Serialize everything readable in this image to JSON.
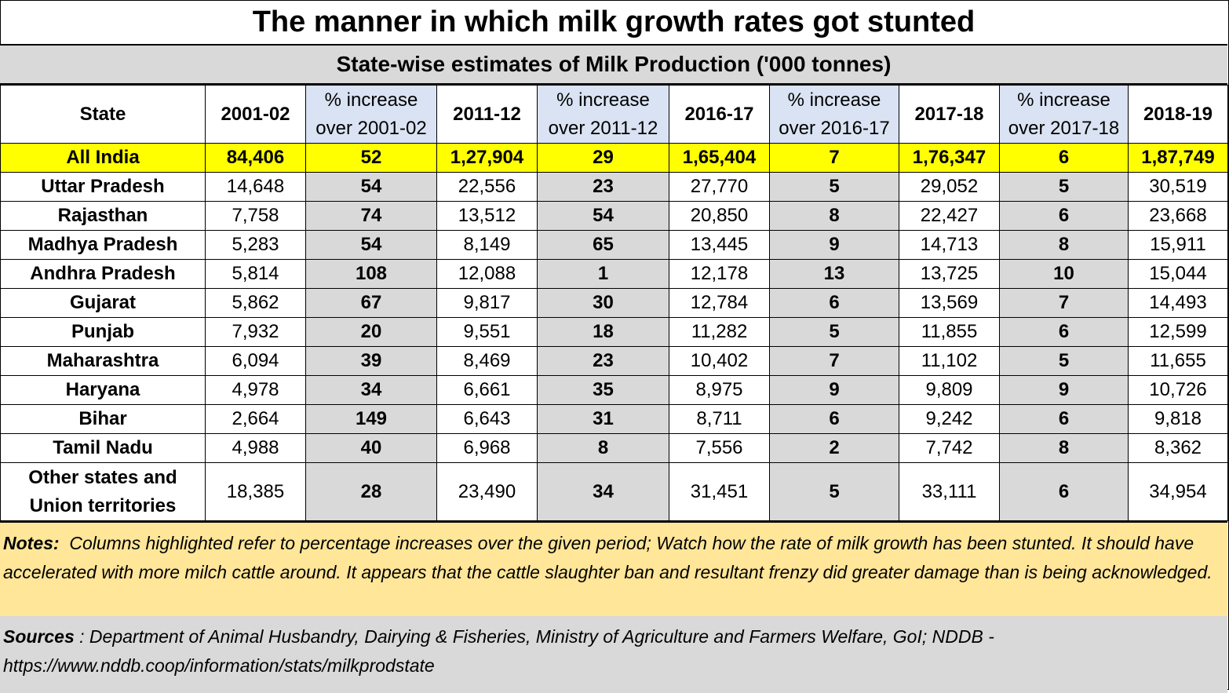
{
  "title": "The manner in which milk growth rates got stunted",
  "subtitle": "State-wise estimates of Milk Production ('000 tonnes)",
  "chart_data": {
    "type": "table",
    "columns": [
      {
        "label": "State"
      },
      {
        "label": "2001-02"
      },
      {
        "label1": "% increase",
        "label2": "over 2001-02"
      },
      {
        "label": "2011-12"
      },
      {
        "label1": "% increase",
        "label2": "over 2011-12"
      },
      {
        "label": "2016-17"
      },
      {
        "label1": "% increase",
        "label2": "over 2016-17"
      },
      {
        "label": "2017-18"
      },
      {
        "label1": "% increase",
        "label2": "over 2017-18"
      },
      {
        "label": "2018-19"
      }
    ],
    "rows": [
      {
        "state": "All India",
        "v2001": "84,406",
        "p1": "52",
        "v2011": "1,27,904",
        "p2": "29",
        "v2016": "1,65,404",
        "p3": "7",
        "v2017": "1,76,347",
        "p4": "6",
        "v2018": "1,87,749"
      },
      {
        "state": "Uttar Pradesh",
        "v2001": "14,648",
        "p1": "54",
        "v2011": "22,556",
        "p2": "23",
        "v2016": "27,770",
        "p3": "5",
        "v2017": "29,052",
        "p4": "5",
        "v2018": "30,519"
      },
      {
        "state": "Rajasthan",
        "v2001": "7,758",
        "p1": "74",
        "v2011": "13,512",
        "p2": "54",
        "v2016": "20,850",
        "p3": "8",
        "v2017": "22,427",
        "p4": "6",
        "v2018": "23,668"
      },
      {
        "state": "Madhya Pradesh",
        "v2001": "5,283",
        "p1": "54",
        "v2011": "8,149",
        "p2": "65",
        "v2016": "13,445",
        "p3": "9",
        "v2017": "14,713",
        "p4": "8",
        "v2018": "15,911"
      },
      {
        "state": "Andhra Pradesh",
        "v2001": "5,814",
        "p1": "108",
        "v2011": "12,088",
        "p2": "1",
        "v2016": "12,178",
        "p3": "13",
        "v2017": "13,725",
        "p4": "10",
        "v2018": "15,044"
      },
      {
        "state": "Gujarat",
        "v2001": "5,862",
        "p1": "67",
        "v2011": "9,817",
        "p2": "30",
        "v2016": "12,784",
        "p3": "6",
        "v2017": "13,569",
        "p4": "7",
        "v2018": "14,493"
      },
      {
        "state": "Punjab",
        "v2001": "7,932",
        "p1": "20",
        "v2011": "9,551",
        "p2": "18",
        "v2016": "11,282",
        "p3": "5",
        "v2017": "11,855",
        "p4": "6",
        "v2018": "12,599"
      },
      {
        "state": "Maharashtra",
        "v2001": "6,094",
        "p1": "39",
        "v2011": "8,469",
        "p2": "23",
        "v2016": "10,402",
        "p3": "7",
        "v2017": "11,102",
        "p4": "5",
        "v2018": "11,655"
      },
      {
        "state": "Haryana",
        "v2001": "4,978",
        "p1": "34",
        "v2011": "6,661",
        "p2": "35",
        "v2016": "8,975",
        "p3": "9",
        "v2017": "9,809",
        "p4": "9",
        "v2018": "10,726"
      },
      {
        "state": "Bihar",
        "v2001": "2,664",
        "p1": "149",
        "v2011": "6,643",
        "p2": "31",
        "v2016": "8,711",
        "p3": "6",
        "v2017": "9,242",
        "p4": "6",
        "v2018": "9,818"
      },
      {
        "state": "Tamil Nadu",
        "v2001": "4,988",
        "p1": "40",
        "v2011": "6,968",
        "p2": "8",
        "v2016": "7,556",
        "p3": "2",
        "v2017": "7,742",
        "p4": "8",
        "v2018": "8,362"
      },
      {
        "state": "Other states and Union territories",
        "v2001": "18,385",
        "p1": "28",
        "v2011": "23,490",
        "p2": "34",
        "v2016": "31,451",
        "p3": "5",
        "v2017": "33,111",
        "p4": "6",
        "v2018": "34,954"
      }
    ]
  },
  "notes": {
    "label": "Notes:",
    "text": "Columns highlighted refer to percentage increases over the given period; Watch how the rate of milk growth has been stunted.  It should have accelerated with more milch cattle around. It appears that the cattle slaughter ban and resultant frenzy did greater damage than is being acknowledged."
  },
  "sources": {
    "label": "Sources",
    "text": " : Department of Animal Husbandry, Dairying & Fisheries, Ministry of Agriculture and Farmers Welfare, GoI; NDDB - https://www.nddb.coop/information/stats/milkprodstate"
  },
  "colors": {
    "highlight_row": "#ffff00",
    "pct_header": "#dae3f3",
    "pct_cells": "#d9d9d9",
    "notes_bg": "#ffe699",
    "sources_bg": "#d9d9d9"
  }
}
